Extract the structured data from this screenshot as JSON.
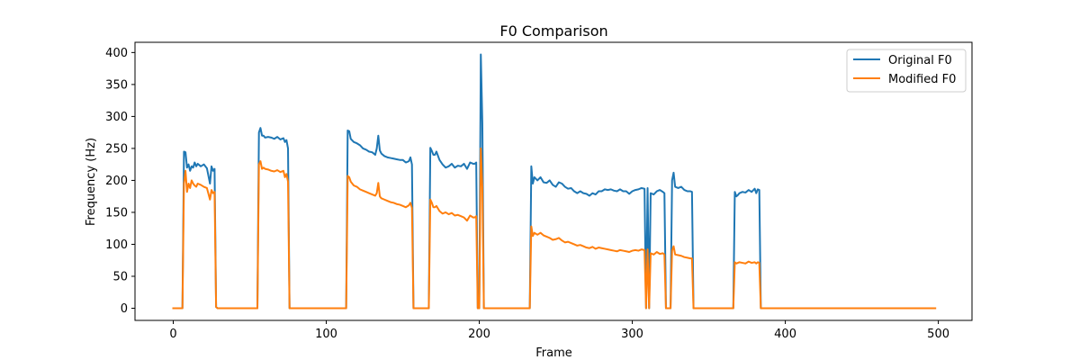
{
  "chart_data": {
    "type": "line",
    "title": "F0 Comparison",
    "xlabel": "Frame",
    "ylabel": "Frequency (Hz)",
    "xlim": [
      -25,
      522
    ],
    "ylim": [
      -19,
      416
    ],
    "xticks": [
      0,
      100,
      200,
      300,
      400,
      500
    ],
    "yticks": [
      0,
      50,
      100,
      150,
      200,
      250,
      300,
      350,
      400
    ],
    "grid": false,
    "legend_position": "top-right",
    "series": [
      {
        "name": "Original F0",
        "color": "#1f77b4",
        "x": [
          0,
          6,
          7,
          8,
          9,
          10,
          11,
          12,
          13,
          14,
          15,
          16,
          18,
          20,
          22,
          24,
          25,
          26,
          27,
          28,
          29,
          55,
          56,
          57,
          58,
          59,
          60,
          62,
          64,
          66,
          68,
          70,
          72,
          73,
          74,
          75,
          76,
          113,
          114,
          115,
          116,
          118,
          120,
          122,
          124,
          126,
          128,
          130,
          132,
          133,
          134,
          135,
          136,
          138,
          140,
          142,
          144,
          146,
          148,
          150,
          152,
          154,
          155,
          156,
          157,
          158,
          167,
          168,
          169,
          170,
          171,
          172,
          174,
          176,
          178,
          180,
          182,
          184,
          186,
          188,
          190,
          192,
          194,
          196,
          197,
          198,
          199,
          200,
          201,
          202,
          203,
          204,
          205,
          206,
          233,
          234,
          235,
          236,
          238,
          240,
          242,
          244,
          246,
          248,
          250,
          252,
          254,
          256,
          258,
          260,
          262,
          264,
          266,
          268,
          270,
          272,
          274,
          276,
          278,
          280,
          282,
          284,
          286,
          288,
          290,
          292,
          294,
          296,
          298,
          300,
          302,
          304,
          306,
          308,
          309,
          310,
          311,
          312,
          314,
          316,
          318,
          320,
          321,
          322,
          325,
          326,
          327,
          328,
          330,
          332,
          334,
          336,
          338,
          339,
          340,
          366,
          367,
          368,
          369,
          370,
          372,
          374,
          376,
          378,
          380,
          381,
          382,
          383,
          384,
          400,
          416
        ],
        "y": [
          0,
          0,
          245,
          244,
          220,
          225,
          215,
          222,
          220,
          228,
          222,
          226,
          222,
          225,
          219,
          195,
          222,
          215,
          218,
          2,
          0,
          0,
          275,
          282,
          270,
          270,
          267,
          268,
          267,
          265,
          268,
          264,
          266,
          260,
          263,
          250,
          0,
          0,
          278,
          277,
          265,
          260,
          258,
          255,
          250,
          248,
          245,
          244,
          240,
          250,
          270,
          247,
          242,
          238,
          236,
          235,
          234,
          233,
          232,
          232,
          228,
          230,
          236,
          225,
          0,
          0,
          0,
          251,
          246,
          240,
          240,
          245,
          232,
          225,
          220,
          222,
          226,
          220,
          223,
          222,
          226,
          218,
          228,
          226,
          226,
          228,
          0,
          0,
          397,
          290,
          0,
          0,
          0,
          0,
          0,
          222,
          195,
          205,
          200,
          205,
          197,
          196,
          200,
          193,
          190,
          197,
          195,
          190,
          187,
          188,
          183,
          180,
          183,
          180,
          179,
          176,
          180,
          178,
          183,
          183,
          186,
          185,
          186,
          184,
          183,
          186,
          183,
          183,
          179,
          183,
          185,
          186,
          188,
          187,
          0,
          188,
          0,
          180,
          178,
          183,
          185,
          182,
          180,
          0,
          0,
          200,
          212,
          190,
          188,
          190,
          185,
          183,
          183,
          182,
          0,
          0,
          182,
          175,
          177,
          180,
          182,
          181,
          185,
          182,
          187,
          180,
          186,
          185,
          0,
          0,
          0
        ]
      },
      {
        "name": "Modified F0",
        "color": "#ff7f0e",
        "x": [
          0,
          6,
          7,
          8,
          9,
          10,
          11,
          12,
          13,
          14,
          15,
          16,
          18,
          20,
          22,
          24,
          25,
          26,
          27,
          28,
          29,
          55,
          56,
          57,
          58,
          59,
          60,
          62,
          64,
          66,
          68,
          70,
          72,
          73,
          74,
          75,
          76,
          113,
          114,
          115,
          116,
          118,
          120,
          122,
          124,
          126,
          128,
          130,
          132,
          133,
          134,
          135,
          136,
          138,
          140,
          142,
          144,
          146,
          148,
          150,
          152,
          154,
          155,
          156,
          157,
          158,
          167,
          168,
          169,
          170,
          171,
          172,
          174,
          176,
          178,
          180,
          182,
          184,
          186,
          188,
          190,
          192,
          194,
          196,
          197,
          198,
          199,
          200,
          201,
          202,
          203,
          204,
          205,
          206,
          233,
          234,
          235,
          236,
          238,
          240,
          242,
          244,
          246,
          248,
          250,
          252,
          254,
          256,
          258,
          260,
          262,
          264,
          266,
          268,
          270,
          272,
          274,
          276,
          278,
          280,
          282,
          284,
          286,
          288,
          290,
          292,
          294,
          296,
          298,
          300,
          302,
          304,
          306,
          308,
          309,
          310,
          311,
          312,
          314,
          316,
          318,
          320,
          321,
          322,
          325,
          326,
          327,
          328,
          330,
          332,
          334,
          336,
          338,
          339,
          340,
          366,
          367,
          368,
          369,
          370,
          372,
          374,
          376,
          378,
          380,
          381,
          382,
          383,
          384,
          400,
          416,
          450,
          498
        ],
        "y": [
          0,
          0,
          195,
          215,
          182,
          195,
          188,
          200,
          195,
          192,
          190,
          195,
          193,
          190,
          188,
          170,
          185,
          180,
          182,
          2,
          0,
          0,
          225,
          230,
          218,
          220,
          218,
          217,
          215,
          214,
          216,
          213,
          215,
          205,
          210,
          198,
          0,
          0,
          207,
          205,
          198,
          192,
          190,
          186,
          184,
          182,
          180,
          178,
          176,
          180,
          196,
          175,
          172,
          170,
          168,
          166,
          165,
          163,
          162,
          160,
          158,
          161,
          165,
          157,
          0,
          0,
          0,
          170,
          165,
          158,
          158,
          160,
          152,
          148,
          150,
          147,
          149,
          145,
          146,
          144,
          142,
          137,
          145,
          142,
          142,
          144,
          0,
          0,
          250,
          190,
          0,
          0,
          0,
          0,
          0,
          128,
          113,
          118,
          115,
          118,
          114,
          112,
          110,
          107,
          108,
          110,
          106,
          103,
          104,
          102,
          100,
          98,
          99,
          97,
          95,
          94,
          96,
          93,
          95,
          94,
          93,
          92,
          91,
          90,
          89,
          91,
          90,
          89,
          88,
          90,
          91,
          90,
          92,
          91,
          0,
          92,
          0,
          86,
          84,
          88,
          85,
          86,
          84,
          0,
          0,
          90,
          97,
          84,
          83,
          82,
          80,
          79,
          78,
          78,
          0,
          0,
          72,
          70,
          71,
          72,
          71,
          70,
          73,
          71,
          72,
          70,
          72,
          71,
          0,
          0,
          0,
          0,
          0
        ]
      }
    ]
  }
}
